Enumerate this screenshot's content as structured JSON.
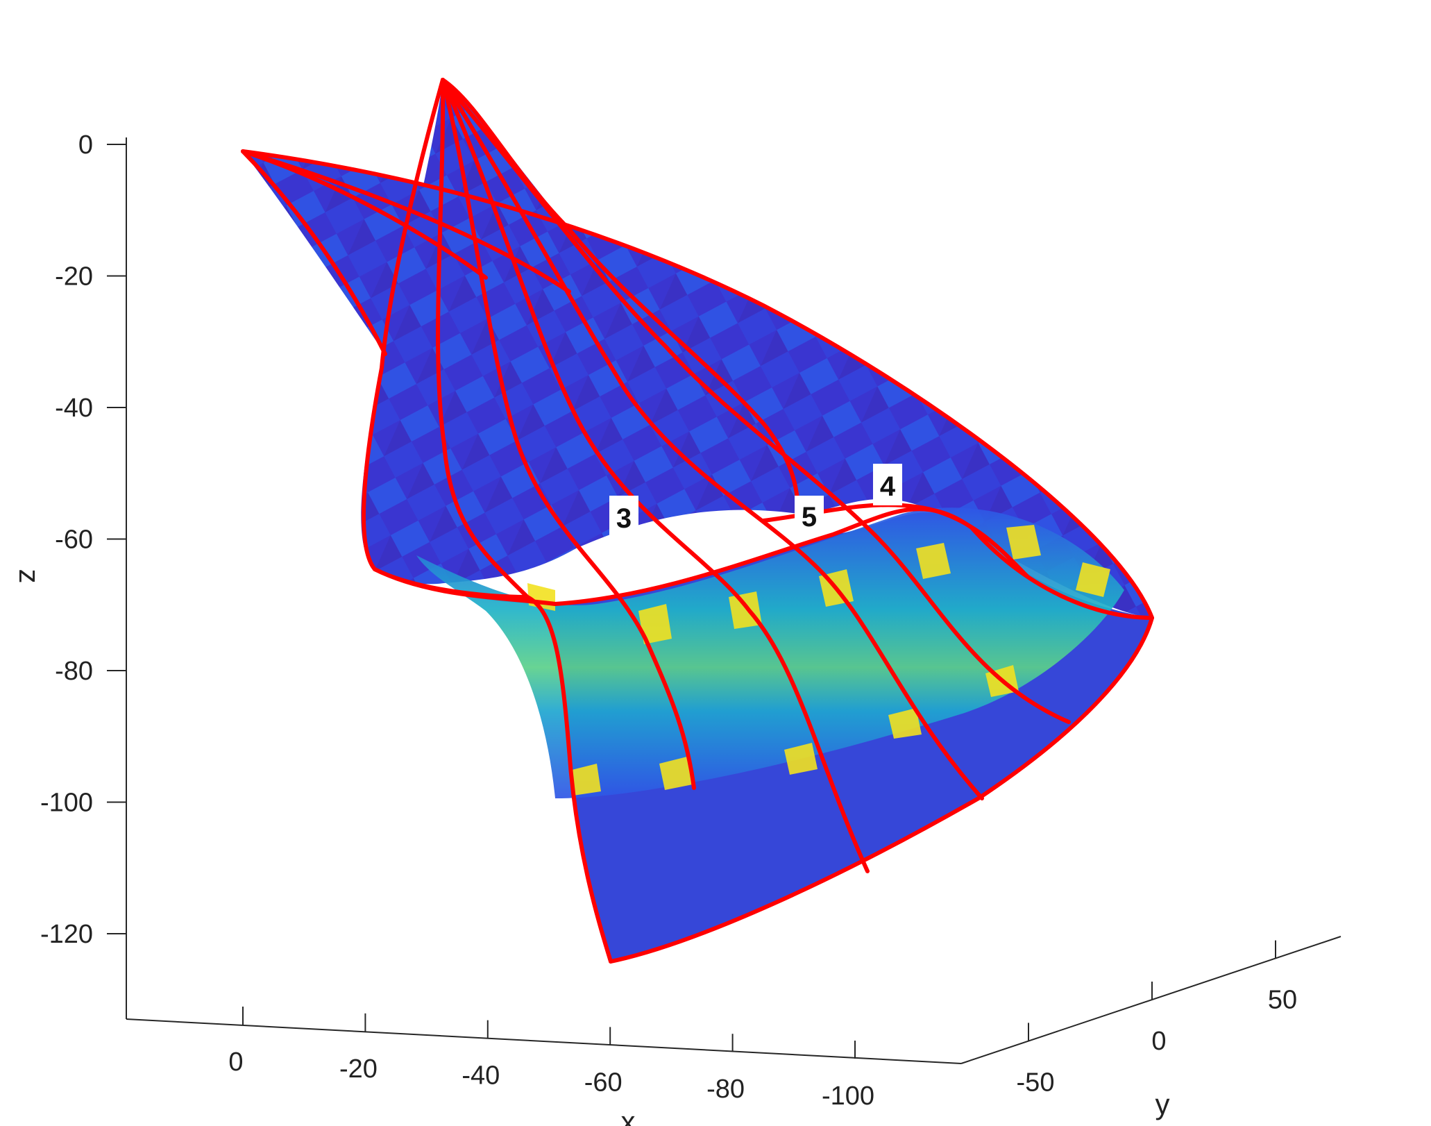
{
  "chart_data": {
    "type": "surface3d",
    "title": "",
    "xlabel": "x",
    "ylabel": "y",
    "zlabel": "z",
    "xlim": [
      20,
      -120
    ],
    "ylim": [
      -80,
      80
    ],
    "zlim": [
      -132,
      2
    ],
    "xticks": [
      0,
      -20,
      -40,
      -60,
      -80,
      -100
    ],
    "xtick_labels": [
      "0",
      "-20",
      "-40",
      "-60",
      "-80",
      "-100"
    ],
    "yticks": [
      -50,
      0,
      50
    ],
    "ytick_labels": [
      "-50",
      "0",
      "50"
    ],
    "zticks": [
      0,
      -20,
      -40,
      -60,
      -80,
      -100,
      -120
    ],
    "ztick_labels": [
      "0",
      "-20",
      "-40",
      "-60",
      "-80",
      "-100",
      "-120"
    ],
    "grid": false,
    "colormap": "parula",
    "surface_colors": [
      "#3a2dc4",
      "#2f49e8",
      "#2c8ce0",
      "#17b8c4",
      "#55c98a",
      "#f5e11e"
    ],
    "edge_curve_color": "#ff0000",
    "markers": [
      {
        "label": "3"
      },
      {
        "label": "5"
      },
      {
        "label": "4"
      }
    ]
  }
}
